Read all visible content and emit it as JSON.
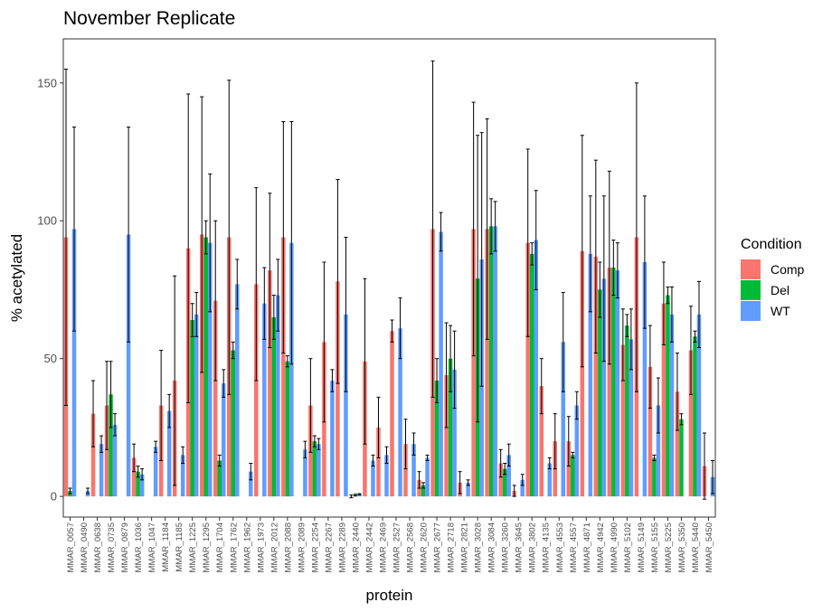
{
  "chart_data": {
    "type": "bar",
    "title": "November Replicate",
    "xlabel": "protein",
    "ylabel": "% acetylated",
    "ylim": [
      -7.5,
      166
    ],
    "yticks": [
      0,
      50,
      100,
      150
    ],
    "grid": false,
    "legend": {
      "title": "Condition",
      "placement": "right"
    },
    "categories": [
      "MMAR_0057",
      "MMAR_0490",
      "MMAR_0638",
      "MMAR_0735",
      "MMAR_0879",
      "MMAR_1036",
      "MMAR_1047",
      "MMAR_1184",
      "MMAR_1185",
      "MMAR_1225",
      "MMAR_1295",
      "MMAR_1704",
      "MMAR_1762",
      "MMAR_1962",
      "MMAR_1973",
      "MMAR_2012",
      "MMAR_2088",
      "MMAR_2089",
      "MMAR_2254",
      "MMAR_2267",
      "MMAR_2289",
      "MMAR_2440",
      "MMAR_2442",
      "MMAR_2469",
      "MMAR_2527",
      "MMAR_2568",
      "MMAR_2620",
      "MMAR_2677",
      "MMAR_2718",
      "MMAR_2821",
      "MMAR_3028",
      "MMAR_3084",
      "MMAR_3260",
      "MMAR_3645",
      "MMAR_3802",
      "MMAR_4135",
      "MMAR_4553",
      "MMAR_4557",
      "MMAR_4871",
      "MMAR_4942",
      "MMAR_4990",
      "MMAR_5102",
      "MMAR_5149",
      "MMAR_5155",
      "MMAR_5225",
      "MMAR_5350",
      "MMAR_5440",
      "MMAR_5450"
    ],
    "series": [
      {
        "name": "Comp",
        "color": "#F8766D",
        "values": [
          94,
          null,
          30,
          33,
          null,
          14,
          null,
          33,
          42,
          90,
          95,
          71,
          94,
          null,
          77,
          82,
          94,
          null,
          33,
          56,
          78,
          0,
          49,
          25,
          60,
          19,
          6,
          97,
          44,
          5,
          97,
          97,
          12,
          2,
          92,
          40,
          20,
          20,
          89,
          87,
          83,
          55,
          94,
          47,
          70,
          38,
          53,
          11
        ],
        "errors": [
          61,
          null,
          12,
          16,
          null,
          5,
          null,
          20,
          38,
          56,
          50,
          29,
          57,
          null,
          35,
          28,
          42,
          null,
          17,
          29,
          37,
          0.5,
          30,
          11,
          4,
          9,
          3,
          61,
          19,
          4,
          46,
          40,
          5,
          2,
          34,
          10,
          10,
          9,
          42,
          35,
          35,
          13,
          56,
          15,
          15,
          14,
          16,
          12
        ]
      },
      {
        "name": "Del",
        "color": "#00BA38",
        "values": [
          2,
          null,
          null,
          37,
          null,
          9,
          null,
          null,
          null,
          64,
          94,
          13,
          53,
          null,
          null,
          65,
          49,
          null,
          20,
          null,
          null,
          0.5,
          null,
          null,
          null,
          null,
          4,
          42,
          50,
          null,
          79,
          98,
          10,
          null,
          88,
          null,
          null,
          15,
          null,
          75,
          83,
          62,
          null,
          14,
          73,
          28,
          58,
          null
        ],
        "errors": [
          1,
          null,
          null,
          12,
          null,
          2,
          null,
          null,
          null,
          6,
          6,
          2,
          3,
          null,
          null,
          8,
          2,
          null,
          2,
          null,
          null,
          0.3,
          null,
          null,
          null,
          null,
          1,
          8,
          12,
          null,
          52,
          10,
          2,
          null,
          4,
          null,
          null,
          1,
          null,
          10,
          10,
          4,
          null,
          1,
          3,
          2,
          2,
          null
        ]
      },
      {
        "name": "WT",
        "color": "#619CFF",
        "values": [
          97,
          2,
          19,
          26,
          95,
          8,
          18,
          31,
          15,
          66,
          92,
          41,
          77,
          9,
          70,
          73,
          92,
          17,
          19,
          42,
          66,
          0.8,
          13,
          15,
          61,
          19,
          14,
          96,
          46,
          5,
          86,
          98,
          15,
          6,
          93,
          12,
          56,
          33,
          88,
          79,
          82,
          57,
          85,
          33,
          66,
          null,
          66,
          7
        ],
        "errors": [
          37,
          1,
          3,
          4,
          39,
          2,
          2,
          6,
          3,
          8,
          25,
          5,
          9,
          3,
          13,
          13,
          44,
          3,
          2,
          4,
          28,
          0.2,
          2,
          3,
          11,
          4,
          1,
          7,
          14,
          1,
          46,
          9,
          4,
          2,
          18,
          2,
          18,
          5,
          21,
          30,
          10,
          11,
          24,
          10,
          10,
          null,
          12,
          6
        ]
      }
    ]
  }
}
